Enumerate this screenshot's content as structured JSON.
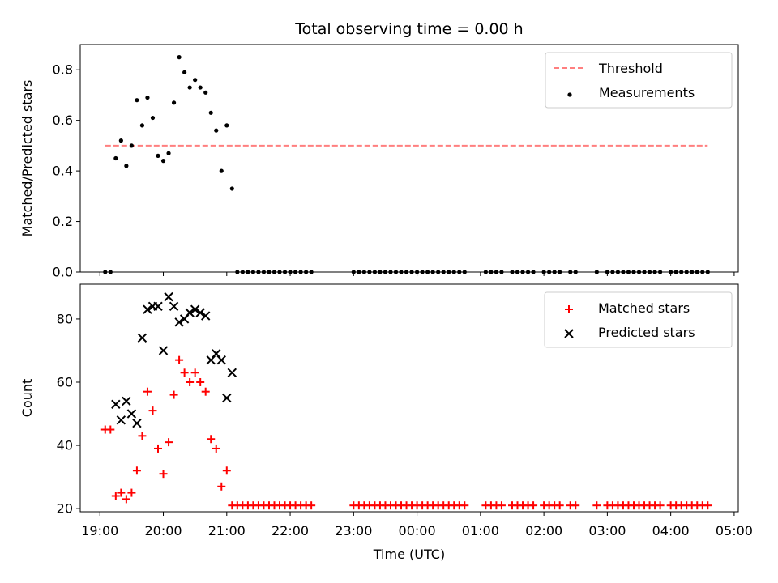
{
  "chart_data": {
    "title": "Total observing time = 0.00 h",
    "xlabel": "Time (UTC)",
    "x_is_time": true,
    "xlim": [
      "19:00",
      "05:00"
    ],
    "x_ticks": [
      "19:00",
      "20:00",
      "21:00",
      "22:00",
      "23:00",
      "00:00",
      "01:00",
      "02:00",
      "03:00",
      "04:00",
      "05:00"
    ],
    "times": [
      "19:05",
      "19:10",
      "19:15",
      "19:20",
      "19:25",
      "19:30",
      "19:35",
      "19:40",
      "19:45",
      "19:50",
      "19:55",
      "20:00",
      "20:05",
      "20:10",
      "20:15",
      "20:20",
      "20:25",
      "20:30",
      "20:35",
      "20:40",
      "20:45",
      "20:50",
      "20:55",
      "21:00",
      "21:05",
      "21:10",
      "21:15",
      "21:20",
      "21:25",
      "21:30",
      "21:35",
      "21:40",
      "21:45",
      "21:50",
      "21:55",
      "22:00",
      "22:05",
      "22:10",
      "22:15",
      "22:20",
      "23:00",
      "23:05",
      "23:10",
      "23:15",
      "23:20",
      "23:25",
      "23:30",
      "23:35",
      "23:40",
      "23:45",
      "23:50",
      "23:55",
      "00:00",
      "00:05",
      "00:10",
      "00:15",
      "00:20",
      "00:25",
      "00:30",
      "00:35",
      "00:40",
      "00:45",
      "01:05",
      "01:10",
      "01:15",
      "01:20",
      "01:30",
      "01:35",
      "01:40",
      "01:45",
      "01:50",
      "02:00",
      "02:05",
      "02:10",
      "02:15",
      "02:25",
      "02:30",
      "02:50",
      "03:00",
      "03:05",
      "03:10",
      "03:15",
      "03:20",
      "03:25",
      "03:30",
      "03:35",
      "03:40",
      "03:45",
      "03:50",
      "04:00",
      "04:05",
      "04:10",
      "04:15",
      "04:20",
      "04:25",
      "04:30",
      "04:35"
    ],
    "charts": [
      {
        "type": "scatter",
        "ylabel": "Matched/Predicted stars",
        "ylim": [
          0,
          0.9
        ],
        "y_ticks": [
          "0.0",
          "0.2",
          "0.4",
          "0.6",
          "0.8"
        ],
        "legend_position": "upper right",
        "threshold": {
          "name": "Threshold",
          "value": 0.5,
          "x_start": "19:05",
          "x_end": "04:35",
          "color": "#ff7f7f",
          "style": "dashed"
        },
        "series": [
          {
            "name": "Measurements",
            "marker": "dot",
            "color": "#000000",
            "x_start_index": 0,
            "values": [
              0.0,
              0.0,
              0.45,
              0.52,
              0.42,
              0.5,
              0.68,
              0.58,
              0.69,
              0.61,
              0.46,
              0.44,
              0.47,
              0.67,
              0.85,
              0.79,
              0.73,
              0.76,
              0.73,
              0.71,
              0.63,
              0.56,
              0.4,
              0.58,
              0.33,
              0.0,
              0.0,
              0.0,
              0.0,
              0.0,
              0.0,
              0.0,
              0.0,
              0.0,
              0.0,
              0.0,
              0.0,
              0.0,
              0.0,
              0.0,
              0.0,
              0.0,
              0.0,
              0.0,
              0.0,
              0.0,
              0.0,
              0.0,
              0.0,
              0.0,
              0.0,
              0.0,
              0.0,
              0.0,
              0.0,
              0.0,
              0.0,
              0.0,
              0.0,
              0.0,
              0.0,
              0.0,
              0.0,
              0.0,
              0.0,
              0.0,
              0.0,
              0.0,
              0.0,
              0.0,
              0.0,
              0.0,
              0.0,
              0.0,
              0.0,
              0.0,
              0.0,
              0.0,
              0.0,
              0.0,
              0.0,
              0.0,
              0.0,
              0.0,
              0.0,
              0.0,
              0.0,
              0.0,
              0.0,
              0.0,
              0.0,
              0.0,
              0.0,
              0.0,
              0.0,
              0.0,
              0.0
            ]
          }
        ]
      },
      {
        "type": "scatter",
        "ylabel": "Count",
        "ylim": [
          19,
          91
        ],
        "y_ticks": [
          "20",
          "40",
          "60",
          "80"
        ],
        "legend_position": "upper right",
        "series": [
          {
            "name": "Matched stars",
            "marker": "plus",
            "color": "#ff0000",
            "x_start_index": 0,
            "values": [
              45,
              45,
              24,
              25,
              23,
              25,
              32,
              43,
              57,
              51,
              39,
              31,
              41,
              56,
              67,
              63,
              60,
              63,
              60,
              57,
              42,
              39,
              27,
              32,
              21,
              21,
              21,
              21,
              21,
              21,
              21,
              21,
              21,
              21,
              21,
              21,
              21,
              21,
              21,
              21,
              21,
              21,
              21,
              21,
              21,
              21,
              21,
              21,
              21,
              21,
              21,
              21,
              21,
              21,
              21,
              21,
              21,
              21,
              21,
              21,
              21,
              21,
              21,
              21,
              21,
              21,
              21,
              21,
              21,
              21,
              21,
              21,
              21,
              21,
              21,
              21,
              21,
              21,
              21,
              21,
              21,
              21,
              21,
              21,
              21,
              21,
              21,
              21,
              21,
              21,
              21,
              21,
              21,
              21,
              21,
              21,
              21
            ]
          },
          {
            "name": "Predicted stars",
            "marker": "x",
            "color": "#000000",
            "x_start_index": 2,
            "values": [
              53,
              48,
              54,
              50,
              47,
              74,
              83,
              84,
              84,
              70,
              87,
              84,
              79,
              80,
              82,
              83,
              82,
              81,
              67,
              69,
              67,
              55,
              63
            ]
          }
        ]
      }
    ]
  }
}
